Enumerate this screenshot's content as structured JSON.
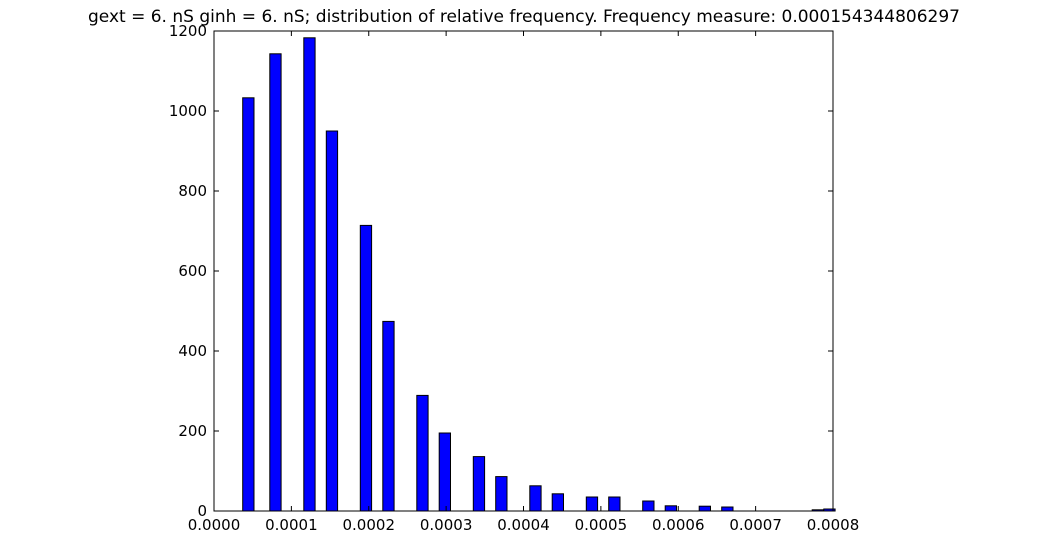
{
  "chart_data": {
    "type": "bar",
    "title": "gext = 6. nS ginh = 6. nS; distribution of relative frequency. Frequency measure: 0.000154344806297",
    "xlabel": "",
    "ylabel": "",
    "xlim": [
      0.0,
      0.0008
    ],
    "ylim": [
      0,
      1200
    ],
    "grid": false,
    "bar_color": "#0000ff",
    "edge_color": "#000000",
    "bar_width": 1.46e-05,
    "xticks": [
      "0.0000",
      "0.0001",
      "0.0002",
      "0.0003",
      "0.0004",
      "0.0005",
      "0.0006",
      "0.0007",
      "0.0008"
    ],
    "xtick_values": [
      0.0,
      0.0001,
      0.0002,
      0.0003,
      0.0004,
      0.0005,
      0.0006,
      0.0007,
      0.0008
    ],
    "yticks": [
      "0",
      "200",
      "400",
      "600",
      "800",
      "1000",
      "1200"
    ],
    "ytick_values": [
      0,
      200,
      400,
      600,
      800,
      1000,
      1200
    ],
    "x": [
      4.44e-05,
      7.94e-05,
      0.0001234,
      0.0001524,
      0.0001964,
      0.0002254,
      0.0002694,
      0.0002984,
      0.0003424,
      0.0003714,
      0.0004154,
      0.0004444,
      0.0004884,
      0.0005174,
      0.0005614,
      0.0005904,
      0.0006344,
      0.0006634,
      0.0007074,
      0.0007364,
      0.0007804,
      0.0007954
    ],
    "values": [
      1033,
      1143,
      1183,
      950,
      714,
      474,
      289,
      195,
      136,
      86,
      63,
      43,
      35,
      35,
      25,
      13,
      12,
      10,
      0,
      0,
      3,
      5
    ]
  }
}
